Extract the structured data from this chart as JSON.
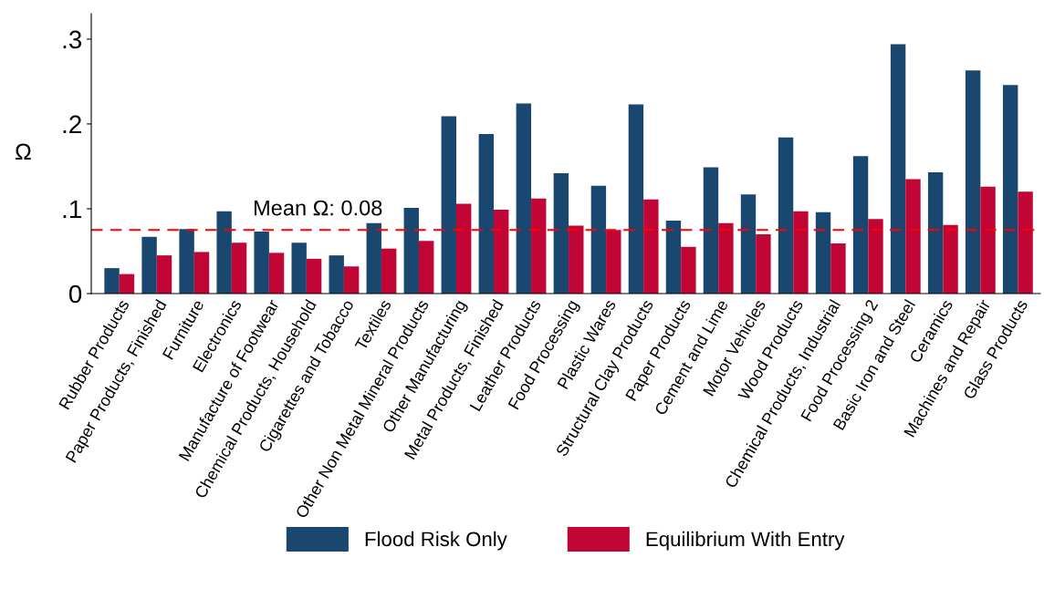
{
  "chart_data": {
    "type": "bar",
    "ylabel": "Ω",
    "categories": [
      "Rubber Products",
      "Paper Products, Finished",
      "Furniture",
      "Electronics",
      "Manufacture of Footwear",
      "Chemical Products, Household",
      "Cigarettes and Tobacco",
      "Textiles",
      "Other Non Metal Mineral Products",
      "Other Manufacturing",
      "Metal Products, Finished",
      "Leather Products",
      "Food Processing",
      "Plastic Wares",
      "Structural Clay Products",
      "Paper Products",
      "Cement and Lime",
      "Motor Vehicles",
      "Wood Products",
      "Chemical Products, Industrial",
      "Food Processing 2",
      "Basic Iron and Steel",
      "Ceramics",
      "Machines and Repair",
      "Glass Products"
    ],
    "series": [
      {
        "name": "Flood Risk Only",
        "color": "#1a476f",
        "values": [
          0.03,
          0.067,
          0.076,
          0.097,
          0.073,
          0.06,
          0.045,
          0.083,
          0.101,
          0.209,
          0.188,
          0.224,
          0.142,
          0.127,
          0.223,
          0.086,
          0.149,
          0.117,
          0.184,
          0.096,
          0.162,
          0.294,
          0.143,
          0.263,
          0.246
        ]
      },
      {
        "name": "Equilibrium With Entry",
        "color": "#c10534",
        "values": [
          0.023,
          0.045,
          0.049,
          0.06,
          0.048,
          0.041,
          0.032,
          0.053,
          0.062,
          0.106,
          0.099,
          0.112,
          0.08,
          0.075,
          0.111,
          0.055,
          0.083,
          0.07,
          0.097,
          0.059,
          0.088,
          0.135,
          0.081,
          0.126,
          0.12
        ]
      }
    ],
    "ylim": [
      0,
      0.33
    ],
    "yticks": [
      {
        "value": 0,
        "label": "0"
      },
      {
        "value": 0.1,
        "label": ".1"
      },
      {
        "value": 0.2,
        "label": ".2"
      },
      {
        "value": 0.3,
        "label": ".3"
      }
    ],
    "ref_lines": [
      {
        "axis": "y",
        "value": 0.075,
        "label": "Mean Ω: 0.08",
        "color": "#ff0000",
        "line_style": "dashed"
      }
    ],
    "grid": false,
    "legend": "bottom"
  }
}
